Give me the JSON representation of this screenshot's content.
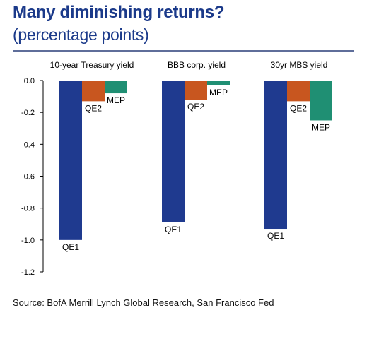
{
  "title": "Many diminishing returns?",
  "subtitle": "(percentage points)",
  "source": "Source: BofA Merrill Lynch Global Research, San Francisco Fed",
  "colors": {
    "QE1": "#1f3a8f",
    "QE2": "#c8561f",
    "MEP": "#1f8f73",
    "title": "#1b3a8a"
  },
  "chart_data": {
    "type": "bar",
    "categories": [
      "10-year Treasury yield",
      "BBB corp. yield",
      "30yr MBS yield"
    ],
    "series": [
      {
        "name": "QE1",
        "values": [
          -1.0,
          -0.89,
          -0.93
        ]
      },
      {
        "name": "QE2",
        "values": [
          -0.13,
          -0.12,
          -0.13
        ]
      },
      {
        "name": "MEP",
        "values": [
          -0.08,
          -0.03,
          -0.25
        ]
      }
    ],
    "yticks": [
      "0.0",
      "-0.2",
      "-0.4",
      "-0.6",
      "-0.8",
      "-1.0",
      "-1.2"
    ],
    "ylim": [
      -1.2,
      0.0
    ],
    "legend": "none (series labels placed next to bars)",
    "grid": false
  }
}
